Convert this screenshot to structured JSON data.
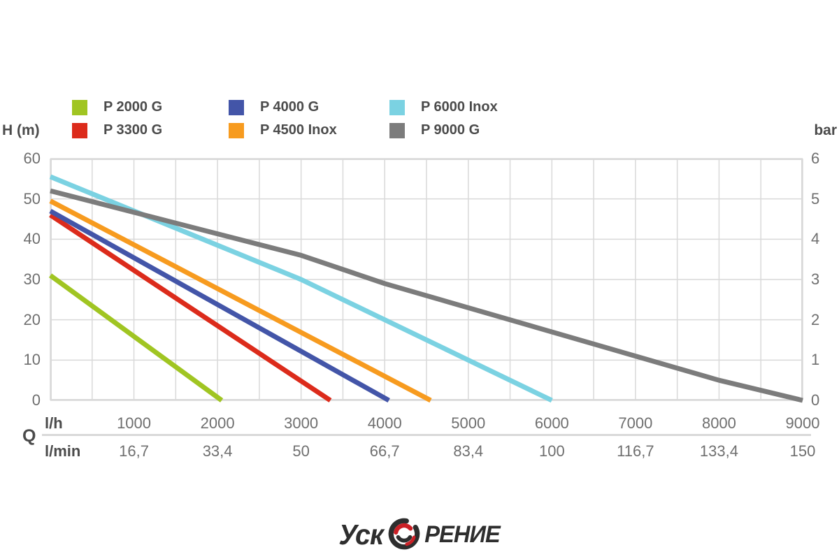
{
  "axes": {
    "left_unit": "H (m)",
    "right_unit": "bar",
    "x_primary_unit": "l/h",
    "x_secondary_unit": "l/min",
    "x_group_label": "Q"
  },
  "chart_data": {
    "type": "line",
    "title": "",
    "xlabel": "Q (l/h | l/min)",
    "ylabel_left": "H (m)",
    "ylabel_right": "bar",
    "xlim": [
      0,
      9000
    ],
    "ylim_left": [
      0,
      60
    ],
    "ylim_right": [
      0,
      6
    ],
    "grid": {
      "on": true,
      "x_step": 500,
      "y_step": 10,
      "color": "#d9d9d9"
    },
    "legend_position": "top-left",
    "y_ticks_left": [
      60,
      50,
      40,
      30,
      20,
      10,
      0
    ],
    "y_ticks_right": [
      6,
      5,
      4,
      3,
      2,
      1,
      0
    ],
    "x_ticks_lh": [
      1000,
      2000,
      3000,
      4000,
      5000,
      6000,
      7000,
      8000,
      9000
    ],
    "x_ticks_lmin": [
      "16,7",
      "33,4",
      "50",
      "66,7",
      "83,4",
      "100",
      "116,7",
      "133,4",
      "150"
    ],
    "series": [
      {
        "name": "P 2000 G",
        "color": "#a0c522",
        "points": [
          [
            0,
            31
          ],
          [
            2050,
            0
          ]
        ]
      },
      {
        "name": "P 3300 G",
        "color": "#dc2b1b",
        "points": [
          [
            0,
            46
          ],
          [
            3350,
            0
          ]
        ]
      },
      {
        "name": "P 4000 G",
        "color": "#4355a8",
        "points": [
          [
            0,
            47
          ],
          [
            4050,
            0
          ]
        ]
      },
      {
        "name": "P 4500 Inox",
        "color": "#f79b1f",
        "points": [
          [
            0,
            49.5
          ],
          [
            4550,
            0
          ]
        ]
      },
      {
        "name": "P 6000 Inox",
        "color": "#7bd2e2",
        "points": [
          [
            0,
            55.5
          ],
          [
            3000,
            30
          ],
          [
            6000,
            0
          ]
        ]
      },
      {
        "name": "P 9000 G",
        "color": "#7c7c7c",
        "points": [
          [
            0,
            52
          ],
          [
            3000,
            36
          ],
          [
            4000,
            29
          ],
          [
            8000,
            5
          ],
          [
            9000,
            0
          ]
        ]
      }
    ]
  },
  "footer": {
    "logo_text_left": "Уск",
    "logo_text_right": "РЕНИЕ",
    "logo_dark": "#2e2e2e",
    "logo_red": "#cb2026"
  }
}
